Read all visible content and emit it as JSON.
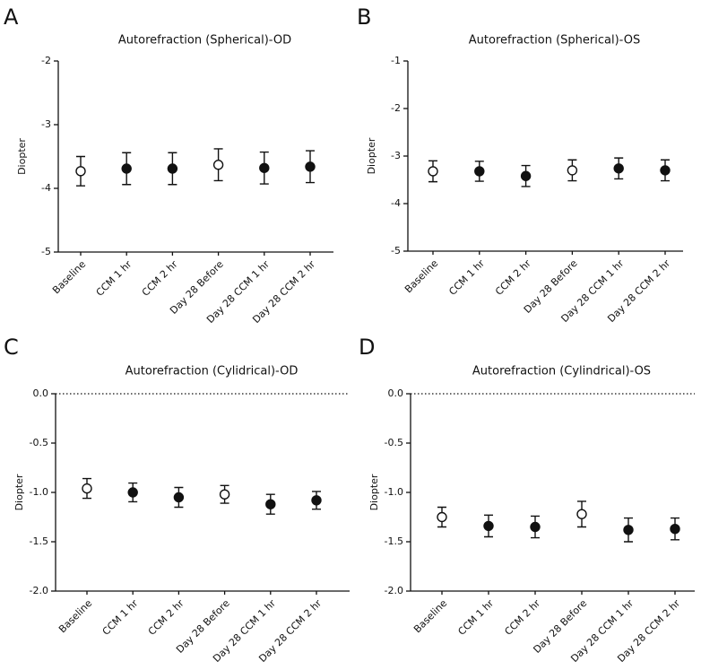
{
  "chart_data": [
    {
      "type": "errorbar",
      "label": "A",
      "title": "Autorefraction (Spherical)-OD",
      "ylabel": "Diopter",
      "categories": [
        "Baseline",
        "CCM 1 hr",
        "CCM 2 hr",
        "Day 28 Before",
        "Day 28 CCM 1 hr",
        "Day 28 CCM 2 hr"
      ],
      "values": [
        -3.73,
        -3.69,
        -3.69,
        -3.63,
        -3.68,
        -3.66
      ],
      "errors": [
        0.23,
        0.25,
        0.25,
        0.25,
        0.25,
        0.25
      ],
      "markers": [
        "open",
        "filled",
        "filled",
        "open",
        "filled",
        "filled"
      ],
      "color": "#111111",
      "ylim": [
        -5,
        -2
      ],
      "yticks": [
        -5,
        -4,
        -3,
        -2
      ]
    },
    {
      "type": "errorbar",
      "label": "B",
      "title": "Autorefraction (Spherical)-OS",
      "ylabel": "Diopter",
      "categories": [
        "Baseline",
        "CCM 1 hr",
        "CCM 2 hr",
        "Day 28 Before",
        "Day 28 CCM 1 hr",
        "Day 28 CCM 2 hr"
      ],
      "values": [
        -3.32,
        -3.32,
        -3.42,
        -3.3,
        -3.26,
        -3.3
      ],
      "errors": [
        0.22,
        0.21,
        0.22,
        0.22,
        0.22,
        0.22
      ],
      "markers": [
        "open",
        "filled",
        "filled",
        "open",
        "filled",
        "filled"
      ],
      "color": "#111111",
      "ylim": [
        -5,
        -1
      ],
      "yticks": [
        -5,
        -4,
        -3,
        -2,
        -1
      ]
    },
    {
      "type": "errorbar",
      "label": "C",
      "title": "Autorefraction (Cylidrical)-OD",
      "ylabel": "Diopter",
      "categories": [
        "Baseline",
        "CCM 1 hr",
        "CCM 2 hr",
        "Day 28 Before",
        "Day 28 CCM 1 hr",
        "Day 28 CCM 2 hr"
      ],
      "values": [
        -0.96,
        -1.0,
        -1.05,
        -1.02,
        -1.12,
        -1.08
      ],
      "errors": [
        0.1,
        0.095,
        0.1,
        0.09,
        0.1,
        0.09
      ],
      "markers": [
        "open",
        "filled",
        "filled",
        "open",
        "filled",
        "filled"
      ],
      "color": "#111111",
      "ylim": [
        -2,
        0
      ],
      "reference_line": 0,
      "yticks": [
        {
          "value": -2,
          "label": "-2.0"
        },
        {
          "value": -1.5,
          "label": "-1.5"
        },
        {
          "value": -1,
          "label": "-1.0"
        },
        {
          "value": -0.5,
          "label": "-0.5"
        },
        {
          "value": 0,
          "label": "0.0"
        }
      ]
    },
    {
      "type": "errorbar",
      "label": "D",
      "title": "Autorefraction (Cylindrical)-OS",
      "ylabel": "Diopter",
      "categories": [
        "Baseline",
        "CCM 1 hr",
        "CCM 2 hr",
        "Day 28 Before",
        "Day 28 CCM 1 hr",
        "Day 28 CCM 2 hr"
      ],
      "values": [
        -1.25,
        -1.34,
        -1.35,
        -1.22,
        -1.38,
        -1.37
      ],
      "errors": [
        0.1,
        0.11,
        0.11,
        0.13,
        0.12,
        0.11
      ],
      "markers": [
        "open",
        "filled",
        "filled",
        "open",
        "filled",
        "filled"
      ],
      "color": "#111111",
      "ylim": [
        -2,
        0
      ],
      "reference_line": 0,
      "yticks": [
        {
          "value": -2,
          "label": "-2.0"
        },
        {
          "value": -1.5,
          "label": "-1.5"
        },
        {
          "value": -1,
          "label": "-1.0"
        },
        {
          "value": -0.5,
          "label": "-0.5"
        },
        {
          "value": 0,
          "label": "0.0"
        }
      ]
    }
  ]
}
